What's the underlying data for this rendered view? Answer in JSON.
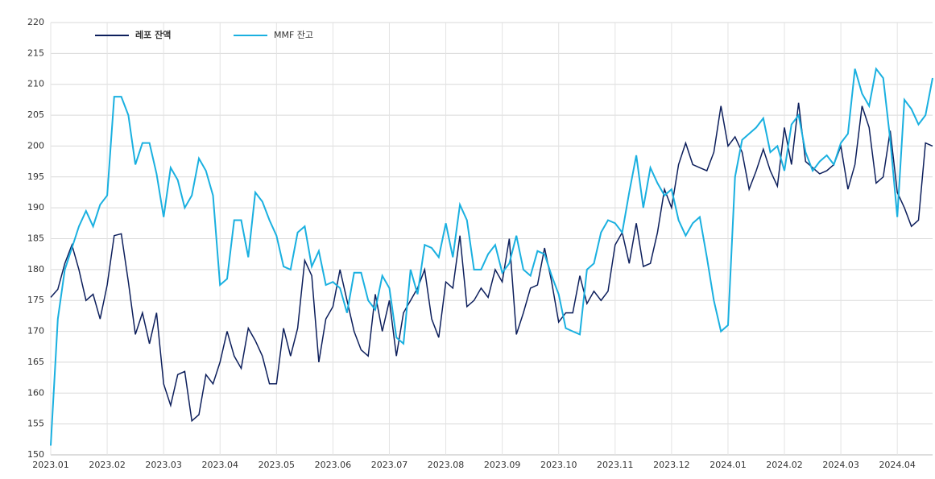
{
  "chart_data": {
    "type": "line",
    "categories": [
      "2023.01",
      null,
      null,
      null,
      null,
      null,
      null,
      null,
      "2023.02",
      null,
      null,
      null,
      null,
      null,
      null,
      null,
      "2023.03",
      null,
      null,
      null,
      null,
      null,
      null,
      null,
      "2023.04",
      null,
      null,
      null,
      null,
      null,
      null,
      null,
      "2023.05",
      null,
      null,
      null,
      null,
      null,
      null,
      null,
      "2023.06",
      null,
      null,
      null,
      null,
      null,
      null,
      null,
      "2023.07",
      null,
      null,
      null,
      null,
      null,
      null,
      null,
      "2023.08",
      null,
      null,
      null,
      null,
      null,
      null,
      null,
      "2023.09",
      null,
      null,
      null,
      null,
      null,
      null,
      null,
      "2023.10",
      null,
      null,
      null,
      null,
      null,
      null,
      null,
      "2023.11",
      null,
      null,
      null,
      null,
      null,
      null,
      null,
      "2023.12",
      null,
      null,
      null,
      null,
      null,
      null,
      null,
      "2024.01",
      null,
      null,
      null,
      null,
      null,
      null,
      null,
      "2024.02",
      null,
      null,
      null,
      null,
      null,
      null,
      null,
      "2024.03",
      null,
      null,
      null,
      null,
      null,
      null,
      null,
      "2024.04",
      null,
      null,
      null,
      null,
      null
    ],
    "series": [
      {
        "name": "레포 잔액",
        "color": "#0d1f5c",
        "values": [
          175.5,
          176.8,
          181,
          184,
          180,
          175,
          176,
          172,
          177.5,
          185.5,
          185.8,
          178,
          169.5,
          173,
          168,
          173,
          161.5,
          158,
          163,
          163.5,
          155.5,
          156.5,
          163,
          161.5,
          165,
          170,
          166,
          164,
          170.5,
          168.5,
          166,
          161.5,
          161.5,
          170.5,
          166,
          170.5,
          181.5,
          179,
          165,
          172,
          174,
          180,
          175,
          170,
          167,
          166,
          176,
          170,
          175,
          166,
          173,
          175,
          177,
          180,
          172,
          169,
          178,
          177,
          185.5,
          174,
          175,
          177,
          175.5,
          180,
          178,
          185,
          169.5,
          173,
          177,
          177.5,
          183.5,
          178,
          171.5,
          173,
          173,
          179,
          174.5,
          176.5,
          175,
          176.5,
          184,
          186,
          181,
          187.5,
          180.5,
          181,
          186,
          193,
          190,
          197,
          200.5,
          197,
          196.5,
          196,
          199,
          206.5,
          200,
          201.5,
          199,
          193,
          196,
          199.5,
          196,
          193.5,
          203,
          197,
          207,
          197.5,
          196.5,
          195.5,
          196,
          197,
          200,
          193,
          197,
          206.5,
          203,
          194,
          195,
          202.5,
          192.5,
          190,
          187,
          188,
          200.5,
          200
        ]
      },
      {
        "name": "MMF 잔고",
        "color": "#1ab0e0",
        "values": [
          151.5,
          172,
          180,
          183.5,
          187,
          189.5,
          187,
          190.5,
          192,
          208,
          208,
          205,
          197,
          200.5,
          200.5,
          195.5,
          188.5,
          196.5,
          194.5,
          190,
          192,
          198,
          196,
          192,
          177.5,
          178.5,
          188,
          188,
          182,
          192.5,
          191,
          188,
          185.5,
          180.5,
          180,
          186,
          187,
          180.5,
          183,
          177.5,
          178,
          177,
          173,
          179.5,
          179.5,
          175,
          173.5,
          179,
          177,
          169,
          168,
          180,
          176,
          184,
          183.5,
          182,
          187.5,
          182,
          190.5,
          188,
          180,
          180,
          182.5,
          184,
          179.5,
          181,
          185.5,
          180,
          179,
          183,
          182.5,
          179,
          176,
          170.5,
          170,
          169.5,
          180,
          181,
          186,
          188,
          187.5,
          186,
          192.5,
          198.5,
          190,
          196.5,
          194,
          192,
          193,
          188,
          185.5,
          187.5,
          188.5,
          182,
          175,
          170,
          171,
          195,
          201,
          202,
          203,
          204.5,
          199,
          200,
          196,
          203.5,
          205,
          199,
          196,
          197.5,
          198.5,
          197,
          200.5,
          202,
          212.5,
          208.5,
          206.5,
          212.5,
          211,
          201,
          188.5,
          207.5,
          206,
          203.5,
          205,
          211
        ]
      }
    ],
    "ylim": [
      150,
      220
    ],
    "yticks": [
      150,
      155,
      160,
      165,
      170,
      175,
      180,
      185,
      190,
      195,
      200,
      205,
      210,
      215,
      220
    ],
    "grid": true,
    "legend": "upper left"
  }
}
